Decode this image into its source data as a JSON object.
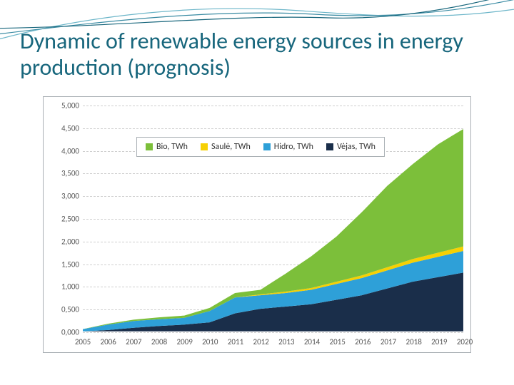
{
  "title": "Dynamic of renewable energy sources in energy production (prognosis)",
  "title_color": "#17667c",
  "title_fontsize": 32,
  "background_color": "#ffffff",
  "wave": {
    "colors": [
      "#6db6c9",
      "#3a8ba3",
      "#17667c"
    ],
    "stroke_width": 1.2
  },
  "chart": {
    "type": "area-stacked",
    "border_color": "#aab0b5",
    "grid_color": "#cfcfcf",
    "grid_dash": true,
    "plot_background": "#ffffff",
    "x_categories": [
      "2005",
      "2006",
      "2007",
      "2008",
      "2009",
      "2010",
      "2011",
      "2012",
      "2013",
      "2014",
      "2015",
      "2016",
      "2017",
      "2018",
      "2019",
      "2020"
    ],
    "y_min": 0.0,
    "y_max": 5.0,
    "y_tick_step": 0.5,
    "y_tick_labels": [
      "0,000",
      "0,500",
      "1,000",
      "1,500",
      "2,000",
      "2,500",
      "3,000",
      "3,500",
      "4,000",
      "4,500",
      "5,000"
    ],
    "axis_fontsize": 11,
    "axis_color": "#555555",
    "legend": {
      "border_color": "#aab0b5",
      "background": "#ffffff",
      "fontsize": 12,
      "items": [
        {
          "label": "Bio, TWh",
          "color": "#7cbf3a"
        },
        {
          "label": "Saulė, TWh",
          "color": "#f6d003"
        },
        {
          "label": "Hidro, TWh",
          "color": "#2ea0d8"
        },
        {
          "label": "Vėjas, TWh",
          "color": "#1a2e4a"
        }
      ]
    },
    "series": [
      {
        "name": "Vėjas, TWh",
        "color": "#1a2e4a",
        "values": [
          0.0,
          0.03,
          0.08,
          0.12,
          0.15,
          0.2,
          0.4,
          0.5,
          0.55,
          0.6,
          0.7,
          0.8,
          0.95,
          1.1,
          1.2,
          1.3
        ]
      },
      {
        "name": "Hidro, TWh",
        "color": "#2ea0d8",
        "values": [
          0.05,
          0.12,
          0.15,
          0.15,
          0.15,
          0.25,
          0.35,
          0.3,
          0.3,
          0.32,
          0.35,
          0.38,
          0.4,
          0.42,
          0.45,
          0.48
        ]
      },
      {
        "name": "Saulė, TWh",
        "color": "#f6d003",
        "values": [
          0.0,
          0.0,
          0.0,
          0.0,
          0.0,
          0.0,
          0.0,
          0.02,
          0.03,
          0.04,
          0.05,
          0.06,
          0.07,
          0.08,
          0.09,
          0.1
        ]
      },
      {
        "name": "Bio, TWh",
        "color": "#7cbf3a",
        "values": [
          0.0,
          0.02,
          0.03,
          0.04,
          0.05,
          0.07,
          0.1,
          0.1,
          0.4,
          0.7,
          1.0,
          1.4,
          1.8,
          2.1,
          2.4,
          2.6
        ]
      }
    ]
  }
}
